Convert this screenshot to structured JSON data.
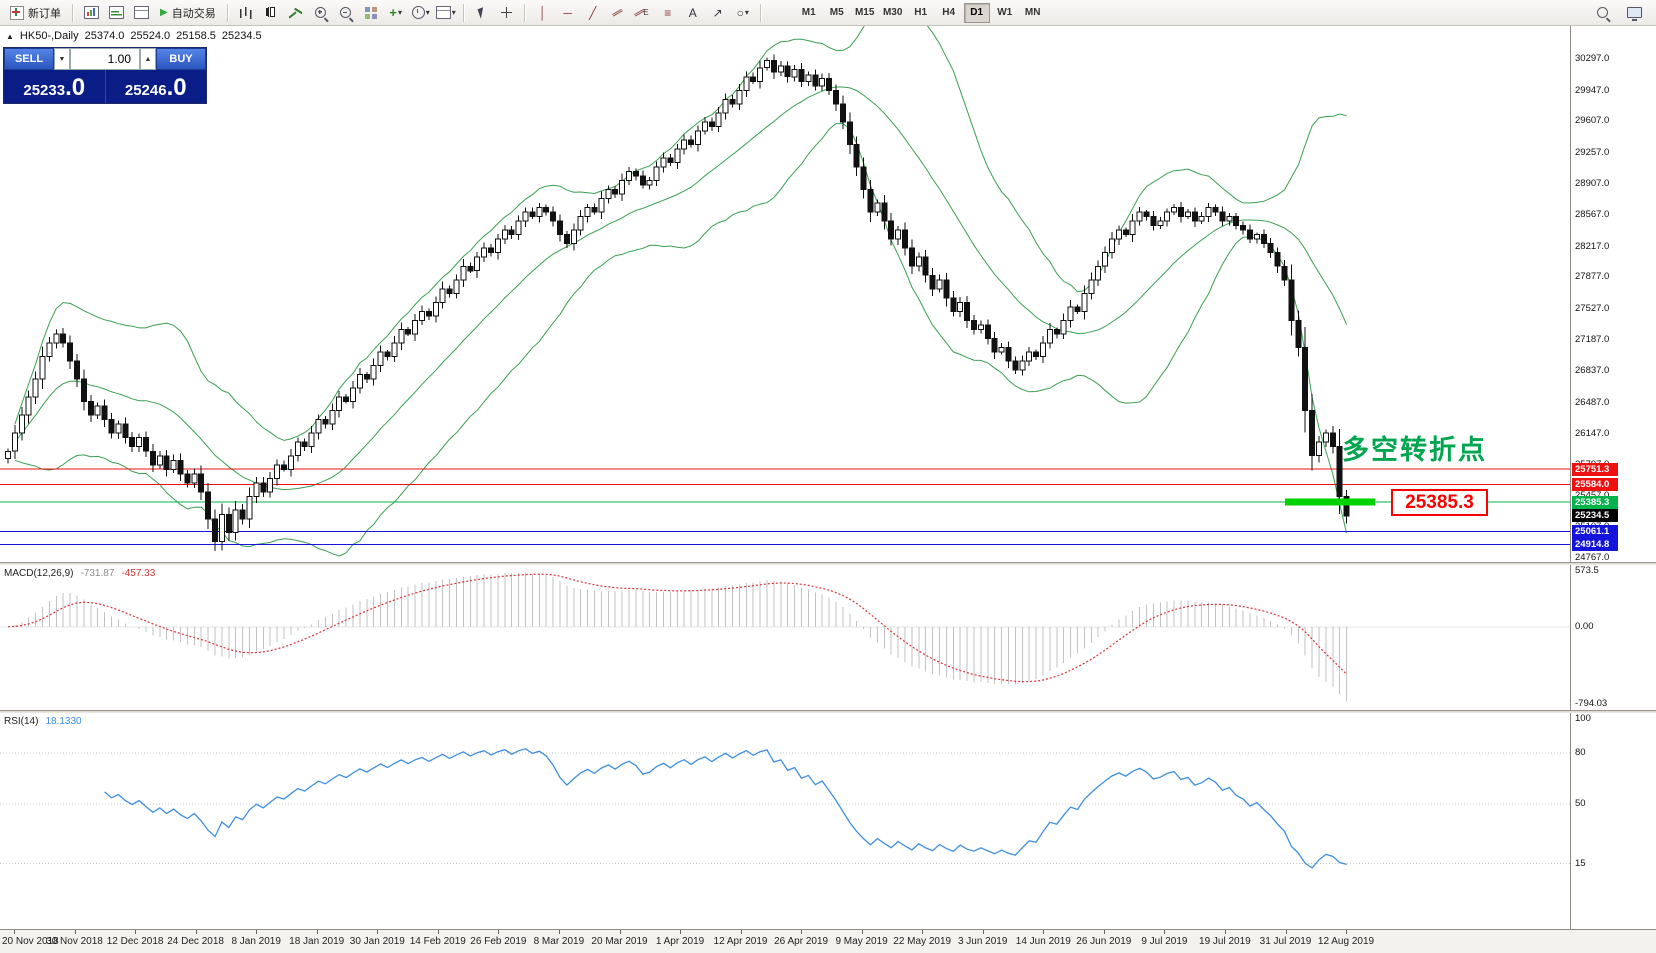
{
  "toolbar": {
    "new_order": "新订单",
    "autotrading": "自动交易",
    "timeframes": [
      "M1",
      "M5",
      "M15",
      "M30",
      "H1",
      "H4",
      "D1",
      "W1",
      "MN"
    ],
    "active_timeframe": "D1"
  },
  "quote_header": {
    "symbol_period": "HK50-,Daily",
    "open": "25374.0",
    "high": "25524.0",
    "low": "25158.5",
    "close": "25234.5"
  },
  "order_panel": {
    "sell_label": "SELL",
    "buy_label": "BUY",
    "volume": "1.00",
    "sell_price": "25233",
    "sell_price_frac": ".0",
    "buy_price": "25246",
    "buy_price_frac": ".0"
  },
  "annotations": {
    "turning_point_text": "多空转折点",
    "turning_point_color": "#00a64f",
    "level_callout": "25385.3",
    "level_callout_color": "#ff0000",
    "highlight_segment": {
      "price": 25385.3,
      "color": "#00d200"
    }
  },
  "chart_data": {
    "type": "candlestick",
    "symbol": "HK50-",
    "period": "Daily",
    "ohlc_current": {
      "open": 25374.0,
      "high": 25524.0,
      "low": 25158.5,
      "close": 25234.5
    },
    "y_axis_ticks": [
      "30297.0",
      "29947.0",
      "29607.0",
      "29257.0",
      "28907.0",
      "28567.0",
      "28217.0",
      "27877.0",
      "27527.0",
      "27187.0",
      "26837.0",
      "26487.0",
      "26147.0",
      "25797.0",
      "25457.0",
      "25107.0",
      "24767.0"
    ],
    "x_axis_ticks": [
      "20 Nov 2018",
      "30 Nov 2018",
      "12 Dec 2018",
      "24 Dec 2018",
      "8 Jan 2019",
      "18 Jan 2019",
      "30 Jan 2019",
      "14 Feb 2019",
      "26 Feb 2019",
      "8 Mar 2019",
      "20 Mar 2019",
      "1 Apr 2019",
      "12 Apr 2019",
      "26 Apr 2019",
      "9 May 2019",
      "22 May 2019",
      "3 Jun 2019",
      "14 Jun 2019",
      "26 Jun 2019",
      "9 Jul 2019",
      "19 Jul 2019",
      "31 Jul 2019",
      "12 Aug 2019"
    ],
    "closes": [
      25950,
      26150,
      26350,
      26550,
      26750,
      27000,
      27150,
      27250,
      27150,
      26950,
      26750,
      26500,
      26350,
      26450,
      26300,
      26150,
      26250,
      26100,
      26000,
      26100,
      25950,
      25800,
      25900,
      25750,
      25850,
      25700,
      25600,
      25700,
      25500,
      25200,
      24950,
      25250,
      25050,
      25300,
      25200,
      25450,
      25600,
      25500,
      25650,
      25800,
      25750,
      25900,
      26050,
      26000,
      26150,
      26300,
      26250,
      26400,
      26550,
      26500,
      26650,
      26800,
      26750,
      26900,
      27050,
      27000,
      27150,
      27300,
      27250,
      27400,
      27500,
      27450,
      27600,
      27750,
      27700,
      27850,
      28000,
      27950,
      28100,
      28200,
      28150,
      28300,
      28400,
      28350,
      28500,
      28600,
      28550,
      28650,
      28600,
      28500,
      28350,
      28250,
      28400,
      28550,
      28650,
      28600,
      28750,
      28850,
      28800,
      28950,
      29050,
      29000,
      28900,
      28950,
      29100,
      29200,
      29150,
      29300,
      29400,
      29350,
      29500,
      29600,
      29550,
      29700,
      29850,
      29800,
      29950,
      30100,
      30050,
      30200,
      30280,
      30150,
      30220,
      30100,
      30180,
      30050,
      30120,
      30000,
      30080,
      29950,
      29800,
      29600,
      29350,
      29100,
      28850,
      28600,
      28700,
      28500,
      28300,
      28400,
      28200,
      28000,
      28100,
      27900,
      27750,
      27850,
      27650,
      27500,
      27600,
      27400,
      27300,
      27350,
      27200,
      27050,
      27100,
      26950,
      26850,
      26950,
      27050,
      27000,
      27150,
      27300,
      27250,
      27400,
      27550,
      27500,
      27700,
      27850,
      28000,
      28150,
      28300,
      28400,
      28350,
      28500,
      28600,
      28550,
      28450,
      28500,
      28600,
      28650,
      28550,
      28600,
      28500,
      28550,
      28650,
      28600,
      28500,
      28550,
      28450,
      28400,
      28300,
      28350,
      28250,
      28150,
      28000,
      27850,
      27400,
      27100,
      26400,
      25900,
      26050,
      26150,
      26000,
      25450,
      25234.5
    ],
    "bollinger": {
      "period": 20,
      "deviation": 2,
      "color": "#3aa050"
    },
    "horizontal_lines": [
      {
        "value": "25751.3",
        "color": "#ee1111"
      },
      {
        "value": "25584.0",
        "color": "#ee1111"
      },
      {
        "value": "25385.3",
        "color": "#00b44a"
      },
      {
        "value": "25061.1",
        "color": "#1414dc"
      },
      {
        "value": "24914.8",
        "color": "#1414dc"
      }
    ],
    "current_price": {
      "value": "25234.5",
      "color": "#000000"
    },
    "price_anchor": {
      "top_value": 30297.0,
      "bottom_value": 24767.0
    },
    "macd": {
      "label": "MACD(12,26,9)",
      "fast": 12,
      "slow": 26,
      "signal": 9,
      "values_label": [
        "-731.87",
        "-457.33"
      ],
      "y_ticks": [
        "573.5",
        "0.00",
        "-794.03"
      ],
      "histogram_color": "#c2c2c2",
      "signal_color": "#e03232"
    },
    "rsi": {
      "label": "RSI(14)",
      "period": 14,
      "last": "18.1330",
      "y_ticks": [
        "100",
        "80",
        "50",
        "15"
      ],
      "levels": [
        80,
        50,
        15
      ],
      "color": "#3f8ee0"
    }
  }
}
